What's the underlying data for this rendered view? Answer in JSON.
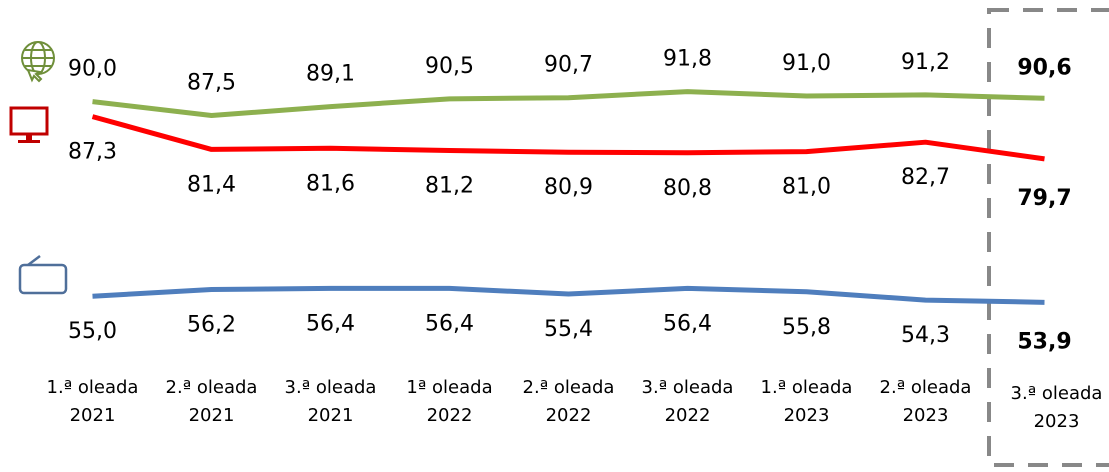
{
  "chart_data": {
    "type": "line",
    "categories": [
      "1.ª oleada\n2021",
      "2.ª oleada\n2021",
      "3.ª oleada\n2021",
      "1ª oleada\n2022",
      "2.ª oleada\n2022",
      "3.ª oleada\n2022",
      "1.ª oleada\n2023",
      "2.ª oleada\n2023",
      "3.ª oleada\n2023"
    ],
    "series": [
      {
        "color": "#8db04f",
        "values": [
          90.0,
          87.5,
          89.1,
          90.5,
          90.7,
          91.8,
          91.0,
          91.2,
          90.6
        ],
        "value_labels": [
          "90,0",
          "87,5",
          "89,1",
          "90,5",
          "90,7",
          "91,8",
          "91,0",
          "91,2",
          "90,6"
        ]
      },
      {
        "color": "#ff0000",
        "values": [
          87.3,
          81.4,
          81.6,
          81.2,
          80.9,
          80.8,
          81.0,
          82.7,
          79.7
        ],
        "value_labels": [
          "87,3",
          "81,4",
          "81,6",
          "81,2",
          "80,9",
          "80,8",
          "81,0",
          "82,7",
          "79,7"
        ]
      },
      {
        "color": "#4f7ebd",
        "values": [
          55.0,
          56.2,
          56.4,
          56.4,
          55.4,
          56.4,
          55.8,
          54.3,
          53.9
        ],
        "value_labels": [
          "55,0",
          "56,2",
          "56,4",
          "56,4",
          "55,4",
          "56,4",
          "55,8",
          "54,3",
          "53,9"
        ]
      }
    ],
    "ylim": [
      50,
      100
    ]
  }
}
